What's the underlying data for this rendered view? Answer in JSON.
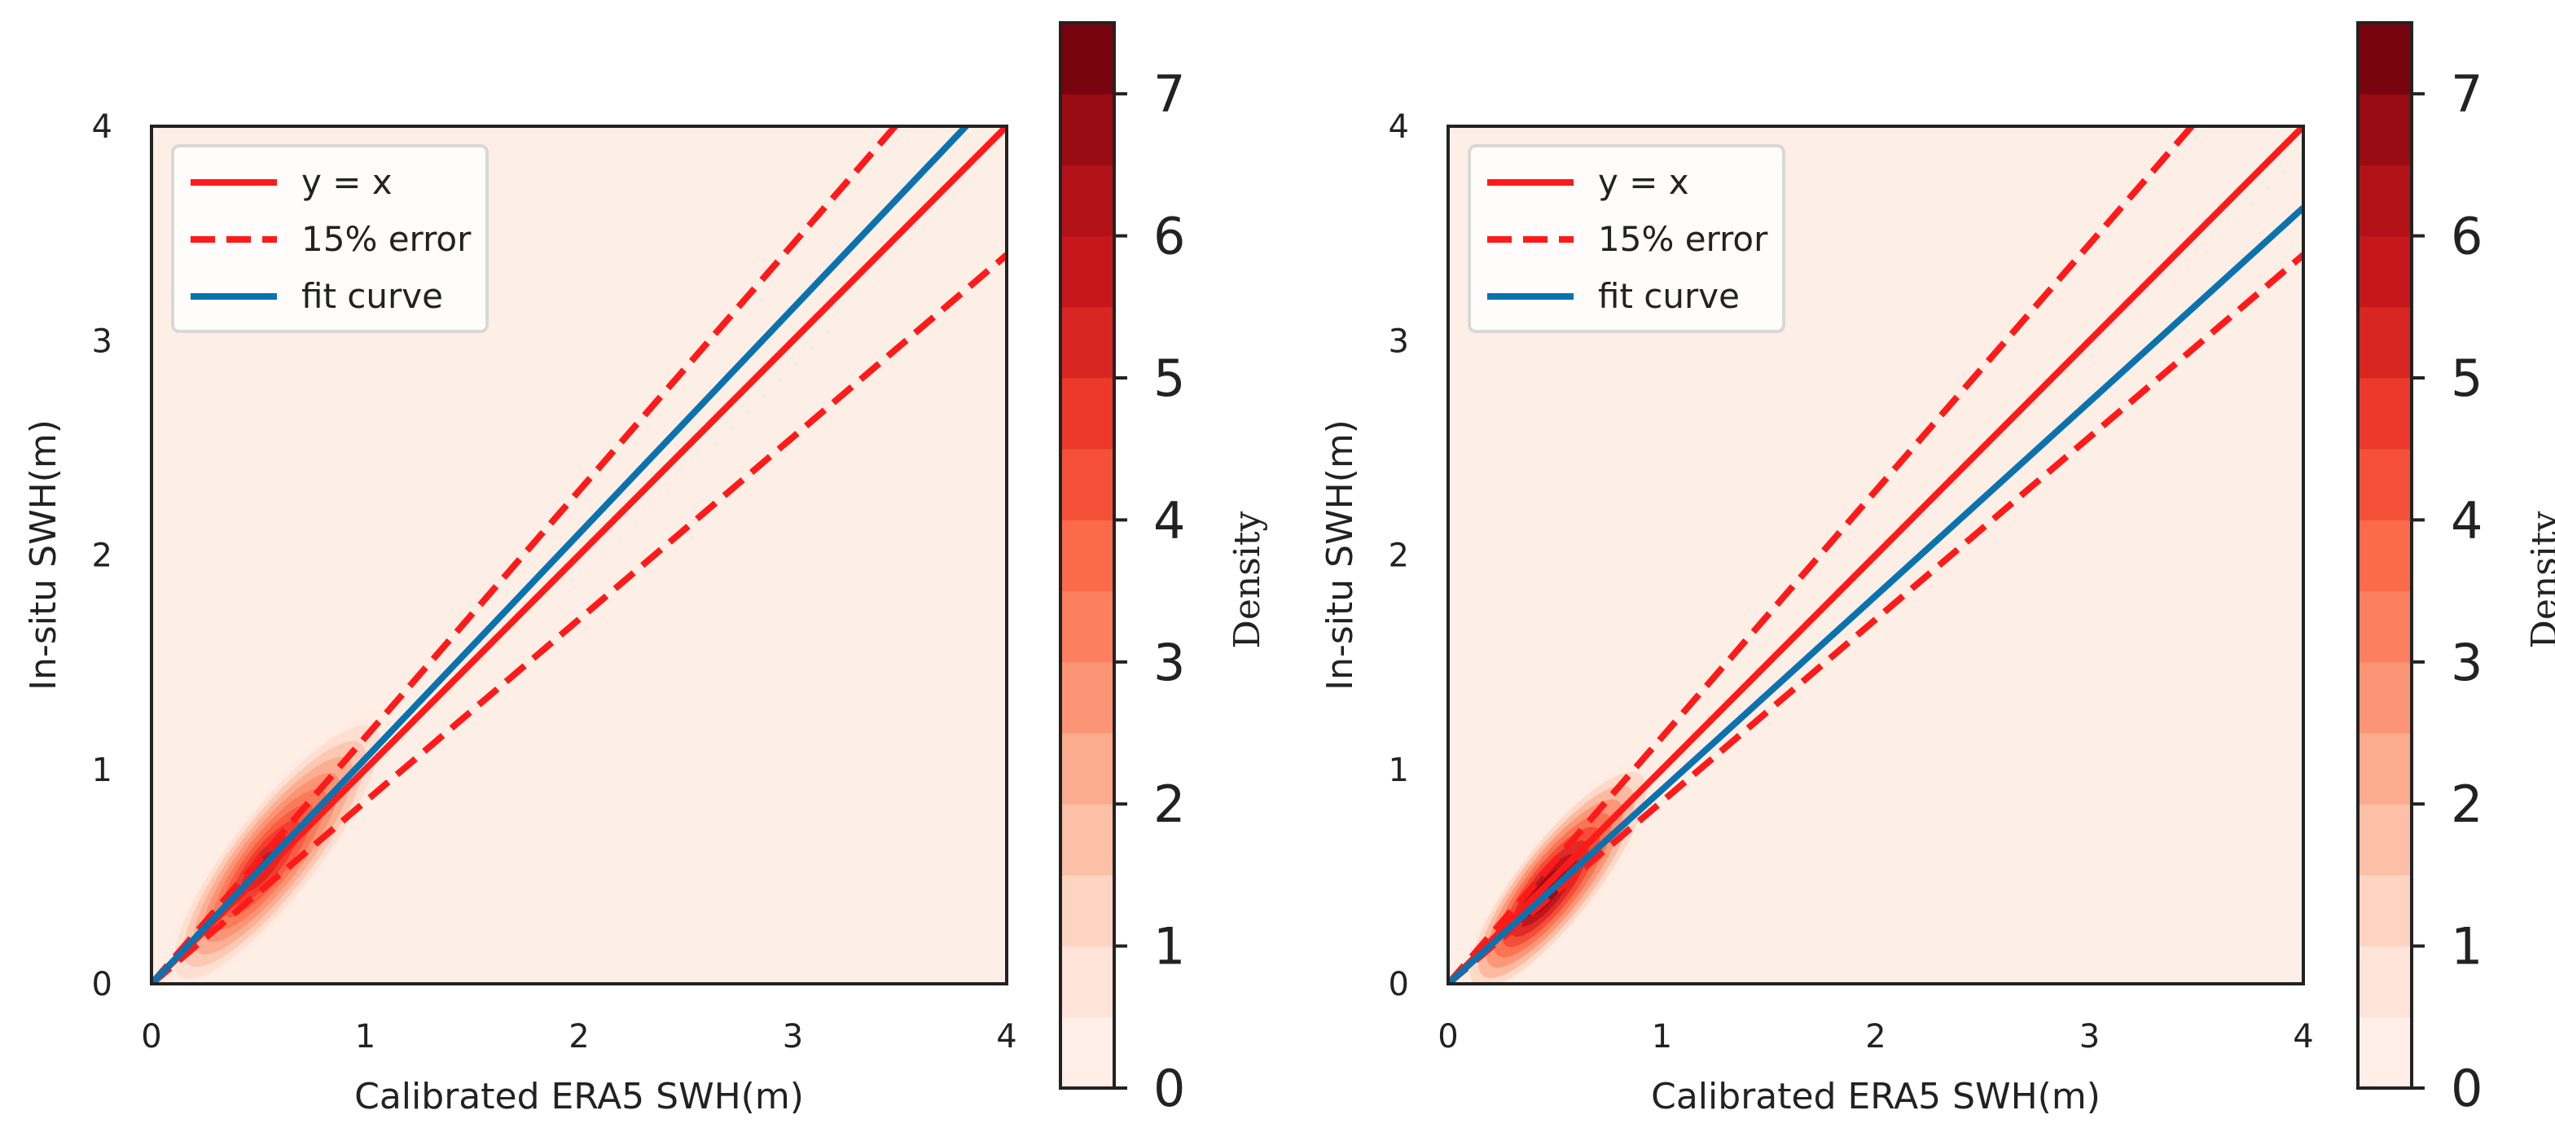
{
  "chart_data": [
    {
      "type": "kde-density-scatter",
      "panel": "left",
      "xlabel": "Calibrated ERA5 SWH(m)",
      "ylabel": "In-situ SWH(m)",
      "xlim": [
        0,
        4
      ],
      "ylim": [
        0,
        4
      ],
      "xticks": [
        "0",
        "1",
        "2",
        "3",
        "4"
      ],
      "yticks": [
        "0",
        "1",
        "2",
        "3",
        "4"
      ],
      "lines": [
        {
          "name": "y = x",
          "style": "solid",
          "color": "#ff1a1a",
          "slope": 1.0
        },
        {
          "name": "15% error",
          "style": "dashed",
          "color": "#ff1a1a",
          "slope_upper": 1.15,
          "slope_lower": 0.85
        },
        {
          "name": "fit curve",
          "style": "solid",
          "color": "#0b72b0",
          "slope": 1.05
        }
      ],
      "density_peak": {
        "x": 0.52,
        "y": 0.55,
        "value": 5.5
      },
      "colorbar": {
        "label": "Density",
        "ticks": [
          "0",
          "1",
          "2",
          "3",
          "4",
          "5",
          "6",
          "7"
        ],
        "min": 0,
        "max": 7.5,
        "levels": 15
      }
    },
    {
      "type": "kde-density-scatter",
      "panel": "right",
      "xlabel": "Calibrated ERA5 SWH(m)",
      "ylabel": "In-situ SWH(m)",
      "xlim": [
        0,
        4
      ],
      "ylim": [
        0,
        4
      ],
      "xticks": [
        "0",
        "1",
        "2",
        "3",
        "4"
      ],
      "yticks": [
        "0",
        "1",
        "2",
        "3",
        "4"
      ],
      "lines": [
        {
          "name": "y = x",
          "style": "solid",
          "color": "#ff1a1a",
          "slope": 1.0
        },
        {
          "name": "15% error",
          "style": "dashed",
          "color": "#ff1a1a",
          "slope_upper": 1.15,
          "slope_lower": 0.85
        },
        {
          "name": "fit curve",
          "style": "solid",
          "color": "#0b72b0",
          "slope": 0.905
        }
      ],
      "density_peak": {
        "x": 0.45,
        "y": 0.42,
        "value": 7.2
      },
      "colorbar": {
        "label": "Density",
        "ticks": [
          "0",
          "1",
          "2",
          "3",
          "4",
          "5",
          "6",
          "7"
        ],
        "min": 0,
        "max": 7.5,
        "levels": 15
      }
    }
  ]
}
